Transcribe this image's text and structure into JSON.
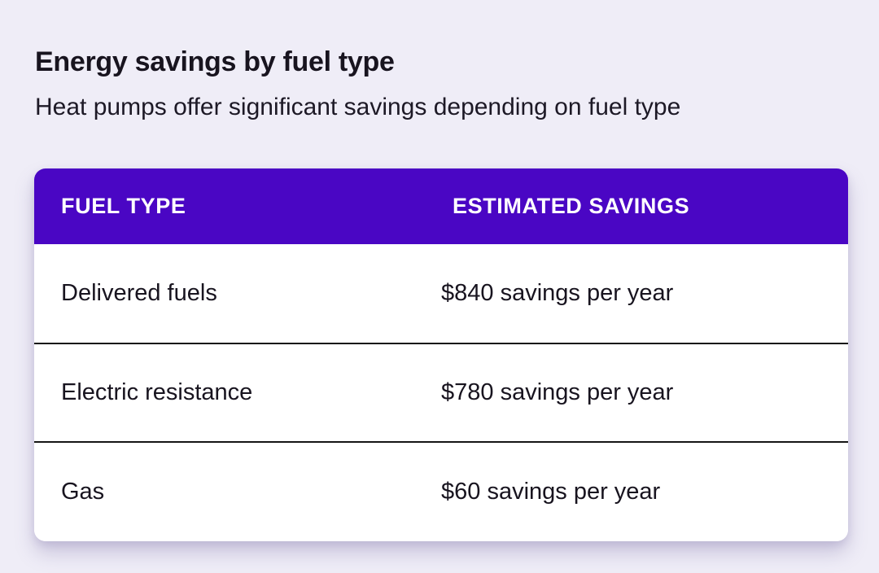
{
  "page": {
    "title": "Energy savings by fuel type",
    "subtitle": "Heat pumps offer significant savings depending on fuel type"
  },
  "table": {
    "headers": [
      "FUEL TYPE",
      "ESTIMATED SAVINGS"
    ],
    "rows": [
      {
        "fuel_type": "Delivered fuels",
        "estimated_savings": "$840 savings per year"
      },
      {
        "fuel_type": "Electric resistance",
        "estimated_savings": "$780 savings per year"
      },
      {
        "fuel_type": "Gas",
        "estimated_savings": "$60 savings per year"
      }
    ]
  },
  "colors": {
    "page_background": "#EFEDF7",
    "card_background": "#FFFFFF",
    "header_background": "#4A06C4",
    "header_text": "#FFFFFF",
    "body_text": "#18141F",
    "divider": "#151515"
  }
}
